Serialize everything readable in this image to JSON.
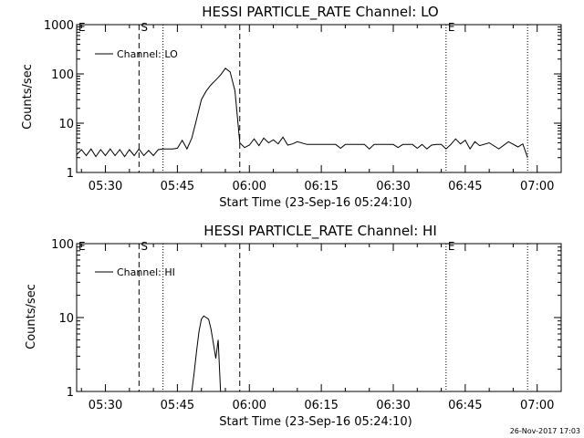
{
  "footer": {
    "timestamp": "26-Nov-2017 17:03"
  },
  "chart_data": [
    {
      "type": "line",
      "title": "HESSI PARTICLE_RATE Channel: LO",
      "xlabel": "Start Time (23-Sep-16 05:24:10)",
      "ylabel": "Counts/sec",
      "yscale": "log",
      "ylim": [
        1,
        1000
      ],
      "xlim": [
        "05:24",
        "07:05"
      ],
      "x_ticks": [
        "05:30",
        "05:45",
        "06:00",
        "06:15",
        "06:30",
        "06:45",
        "07:00"
      ],
      "y_ticks": [
        "1",
        "10",
        "100",
        "1000"
      ],
      "legend": {
        "position": "top-left",
        "entries": [
          "Channel: LO"
        ]
      },
      "markers": [
        {
          "time": "05:24",
          "label": "E",
          "style": "dotted"
        },
        {
          "time": "05:37",
          "label": "S",
          "style": "dashed"
        },
        {
          "time": "05:42",
          "label": "",
          "style": "dotted"
        },
        {
          "time": "05:58",
          "label": "",
          "style": "dashed"
        },
        {
          "time": "06:41",
          "label": "E",
          "style": "dotted"
        },
        {
          "time": "06:58",
          "label": "",
          "style": "dotted"
        }
      ],
      "series": [
        {
          "name": "Channel: LO",
          "x": [
            "05:24",
            "05:25",
            "05:26",
            "05:27",
            "05:28",
            "05:29",
            "05:30",
            "05:31",
            "05:32",
            "05:33",
            "05:34",
            "05:35",
            "05:36",
            "05:37",
            "05:38",
            "05:39",
            "05:40",
            "05:41",
            "05:42",
            "05:43",
            "05:44",
            "05:45",
            "05:46",
            "05:47",
            "05:48",
            "05:49",
            "05:50",
            "05:51",
            "05:52",
            "05:53",
            "05:54",
            "05:55",
            "05:56",
            "05:57",
            "05:58",
            "05:59",
            "06:00",
            "06:01",
            "06:02",
            "06:03",
            "06:04",
            "06:05",
            "06:06",
            "06:07",
            "06:08",
            "06:09",
            "06:10",
            "06:12",
            "06:14",
            "06:16",
            "06:18",
            "06:19",
            "06:20",
            "06:22",
            "06:24",
            "06:25",
            "06:26",
            "06:27",
            "06:28",
            "06:29",
            "06:30",
            "06:31",
            "06:32",
            "06:33",
            "06:34",
            "06:35",
            "06:36",
            "06:37",
            "06:38",
            "06:39",
            "06:40",
            "06:41",
            "06:42",
            "06:43",
            "06:44",
            "06:45",
            "06:46",
            "06:47",
            "06:48",
            "06:50",
            "06:52",
            "06:54",
            "06:56",
            "06:57",
            "06:58"
          ],
          "values": [
            2.3,
            2.9,
            2.2,
            3.0,
            2.1,
            2.9,
            2.2,
            3.0,
            2.2,
            2.9,
            2.1,
            2.9,
            2.2,
            3.0,
            2.2,
            2.8,
            2.2,
            2.9,
            3.0,
            3.0,
            3.0,
            3.1,
            4.5,
            3.0,
            5.0,
            12,
            30,
            45,
            60,
            75,
            95,
            130,
            110,
            45,
            4.0,
            3.2,
            3.6,
            4.8,
            3.5,
            5.0,
            4.0,
            4.6,
            3.8,
            5.2,
            3.6,
            3.8,
            4.2,
            3.7,
            3.7,
            3.7,
            3.7,
            3.1,
            3.7,
            3.7,
            3.7,
            3.0,
            3.7,
            3.7,
            3.7,
            3.7,
            3.7,
            3.2,
            3.7,
            3.7,
            3.7,
            3.1,
            3.7,
            3.0,
            3.6,
            3.7,
            3.7,
            3.0,
            3.7,
            4.8,
            3.8,
            4.5,
            3.0,
            4.2,
            3.5,
            4.0,
            3.0,
            4.2,
            3.3,
            3.8,
            2.0
          ]
        }
      ]
    },
    {
      "type": "line",
      "title": "HESSI PARTICLE_RATE Channel: HI",
      "xlabel": "Start Time (23-Sep-16 05:24:10)",
      "ylabel": "Counts/sec",
      "yscale": "log",
      "ylim": [
        1,
        100
      ],
      "xlim": [
        "05:24",
        "07:05"
      ],
      "x_ticks": [
        "05:30",
        "05:45",
        "06:00",
        "06:15",
        "06:30",
        "06:45",
        "07:00"
      ],
      "y_ticks": [
        "1",
        "10",
        "100"
      ],
      "legend": {
        "position": "top-left",
        "entries": [
          "Channel: HI"
        ]
      },
      "markers": [
        {
          "time": "05:24",
          "label": "E",
          "style": "dotted"
        },
        {
          "time": "05:37",
          "label": "S",
          "style": "dashed"
        },
        {
          "time": "05:42",
          "label": "",
          "style": "dotted"
        },
        {
          "time": "05:58",
          "label": "",
          "style": "dashed"
        },
        {
          "time": "06:41",
          "label": "E",
          "style": "dotted"
        },
        {
          "time": "06:58",
          "label": "",
          "style": "dotted"
        }
      ],
      "series": [
        {
          "name": "Channel: HI",
          "x": [
            "05:48",
            "05:48.5",
            "05:49",
            "05:49.5",
            "05:50",
            "05:50.5",
            "05:51",
            "05:51.5",
            "05:52",
            "05:52.5",
            "05:53",
            "05:53.5",
            "05:54"
          ],
          "values": [
            1.0,
            1.8,
            3.5,
            6.5,
            9.5,
            10.5,
            10,
            9.5,
            7,
            4.5,
            2.8,
            5,
            1.0
          ]
        }
      ]
    }
  ]
}
